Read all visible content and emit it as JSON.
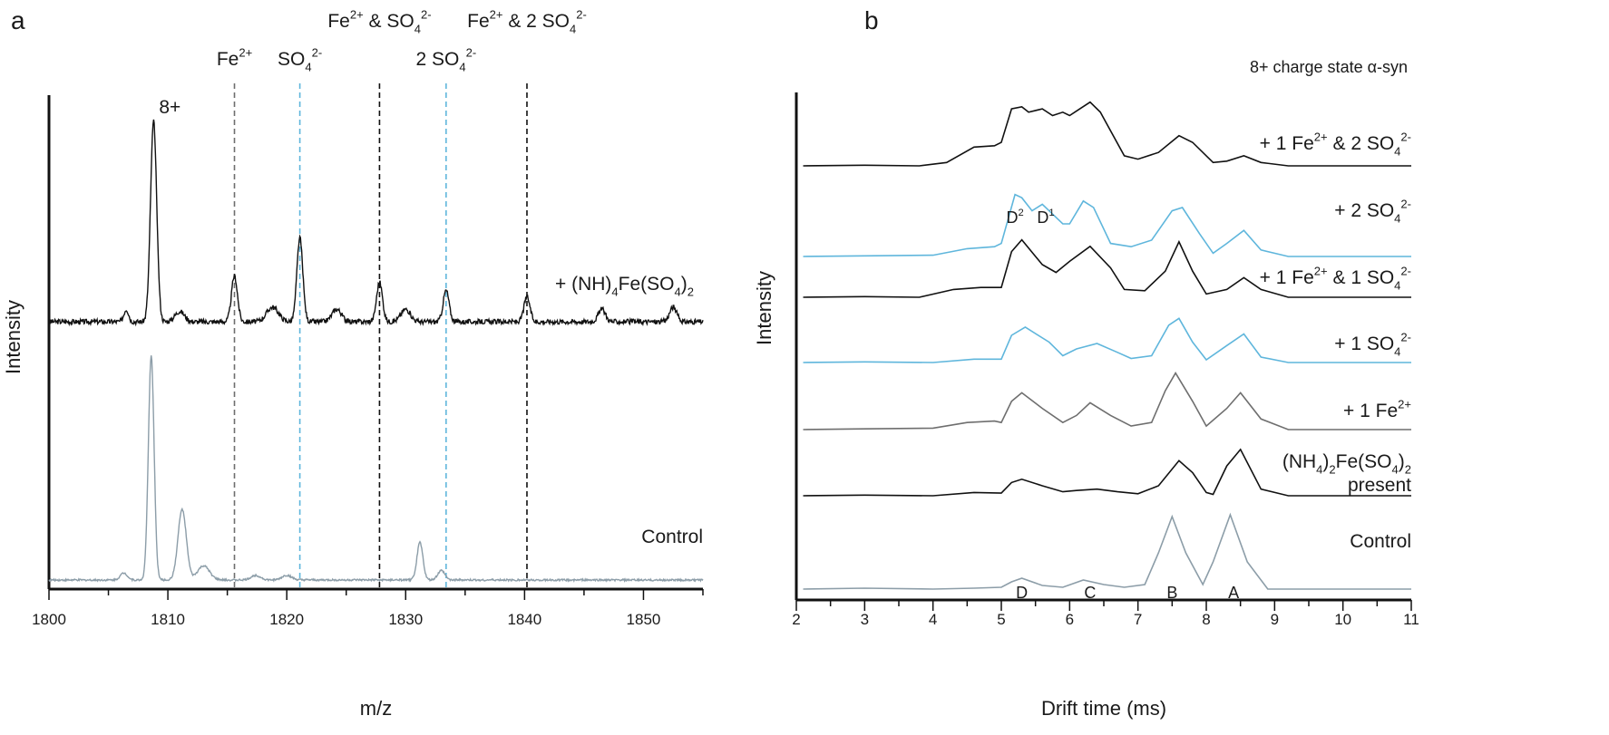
{
  "chart_data": [
    {
      "type": "line",
      "panel": "a",
      "xlabel": "m/z",
      "ylabel": "Intensity",
      "xlim": [
        1800,
        1855
      ],
      "xticks": [
        1800,
        1810,
        1820,
        1830,
        1840,
        1850
      ],
      "xtick_labels": [
        "1800",
        "1810",
        "1820",
        "1830",
        "1840",
        "1850"
      ],
      "peak_label": {
        "text": "8+",
        "x": 1808.8
      },
      "markers": [
        {
          "x": 1815.6,
          "color": "#6e6e6e",
          "base": "Fe",
          "sup": "2+",
          "sub": "",
          "sup2": ""
        },
        {
          "x": 1821.1,
          "color": "#5fb6dc",
          "base": "SO",
          "sub": "4",
          "sup": "2-",
          "sup2": ""
        },
        {
          "x": 1827.8,
          "color": "#111111",
          "base": "Fe",
          "sup": "2+",
          "mid": " & SO",
          "sub": "4",
          "sup2": "2-"
        },
        {
          "x": 1833.4,
          "color": "#5fb6dc",
          "base": "2 SO",
          "sub": "4",
          "sup": "2-",
          "sup2": ""
        },
        {
          "x": 1840.2,
          "color": "#111111",
          "base": "Fe",
          "sup": "2+",
          "mid": " & 2 SO",
          "sub": "4",
          "sup2": "2-"
        }
      ],
      "series": [
        {
          "name": "+ (NH)4Fe(SO4)2",
          "label": {
            "t1": "+ (NH)",
            "s1": "4",
            "t2": "Fe(SO",
            "s2": "4",
            "t3": ")",
            "s3": "2"
          },
          "color": "#111111",
          "baseline": 0.04,
          "noise": 0.012,
          "peaks": [
            {
              "x": 1806.5,
              "h": 0.06,
              "w": 0.2
            },
            {
              "x": 1808.8,
              "h": 0.96,
              "w": 0.26
            },
            {
              "x": 1811.0,
              "h": 0.05,
              "w": 0.4
            },
            {
              "x": 1815.6,
              "h": 0.22,
              "w": 0.25
            },
            {
              "x": 1818.8,
              "h": 0.07,
              "w": 0.5
            },
            {
              "x": 1821.1,
              "h": 0.4,
              "w": 0.25
            },
            {
              "x": 1824.2,
              "h": 0.06,
              "w": 0.4
            },
            {
              "x": 1827.8,
              "h": 0.19,
              "w": 0.25
            },
            {
              "x": 1830.0,
              "h": 0.06,
              "w": 0.4
            },
            {
              "x": 1833.4,
              "h": 0.15,
              "w": 0.25
            },
            {
              "x": 1840.2,
              "h": 0.12,
              "w": 0.25
            },
            {
              "x": 1846.5,
              "h": 0.06,
              "w": 0.3
            },
            {
              "x": 1852.5,
              "h": 0.07,
              "w": 0.3
            }
          ]
        },
        {
          "name": "Control",
          "label": {
            "t1": "Control"
          },
          "color": "#8c9da8",
          "baseline": 0.02,
          "noise": 0.004,
          "peaks": [
            {
              "x": 1806.3,
              "h": 0.03,
              "w": 0.3
            },
            {
              "x": 1808.6,
              "h": 0.95,
              "w": 0.24
            },
            {
              "x": 1811.2,
              "h": 0.3,
              "w": 0.35
            },
            {
              "x": 1813.0,
              "h": 0.06,
              "w": 0.5
            },
            {
              "x": 1817.4,
              "h": 0.02,
              "w": 0.4
            },
            {
              "x": 1820.0,
              "h": 0.02,
              "w": 0.4
            },
            {
              "x": 1831.2,
              "h": 0.16,
              "w": 0.25
            },
            {
              "x": 1833.0,
              "h": 0.04,
              "w": 0.3
            }
          ]
        }
      ]
    },
    {
      "type": "line",
      "panel": "b",
      "title": "8+ charge state α-syn",
      "xlabel": "Drift time (ms)",
      "ylabel": "Intensity",
      "xlim": [
        2,
        11
      ],
      "xticks": [
        2,
        3,
        4,
        5,
        6,
        7,
        8,
        9,
        10,
        11
      ],
      "xtick_labels": [
        "2",
        "3",
        "4",
        "5",
        "6",
        "7",
        "8",
        "9",
        "10",
        "11"
      ],
      "conformer_labels": [
        {
          "text": "D",
          "x": 5.3
        },
        {
          "text": "C",
          "x": 6.3
        },
        {
          "text": "B",
          "x": 7.5
        },
        {
          "text": "A",
          "x": 8.4
        }
      ],
      "sub_labels": [
        {
          "text": "D",
          "sup": "2",
          "x": 5.2
        },
        {
          "text": "D",
          "sup": "1",
          "x": 5.65
        }
      ],
      "series": [
        {
          "name": "+ 1 Fe2+ & 2 SO42-",
          "label": {
            "t1": "+ 1 Fe",
            "sup1": "2+",
            "t2": " & 2 SO",
            "sub": "4",
            "sup2": "2-"
          },
          "color": "#111111",
          "points": [
            [
              2.1,
              0.0
            ],
            [
              3.0,
              0.01
            ],
            [
              3.8,
              0.0
            ],
            [
              4.2,
              0.05
            ],
            [
              4.6,
              0.28
            ],
            [
              4.9,
              0.3
            ],
            [
              5.0,
              0.35
            ],
            [
              5.15,
              0.85
            ],
            [
              5.3,
              0.88
            ],
            [
              5.4,
              0.8
            ],
            [
              5.6,
              0.85
            ],
            [
              5.75,
              0.75
            ],
            [
              5.9,
              0.8
            ],
            [
              6.0,
              0.75
            ],
            [
              6.15,
              0.85
            ],
            [
              6.3,
              0.95
            ],
            [
              6.45,
              0.8
            ],
            [
              6.8,
              0.15
            ],
            [
              7.0,
              0.1
            ],
            [
              7.3,
              0.2
            ],
            [
              7.6,
              0.45
            ],
            [
              7.8,
              0.35
            ],
            [
              8.1,
              0.05
            ],
            [
              8.3,
              0.07
            ],
            [
              8.55,
              0.15
            ],
            [
              8.8,
              0.05
            ],
            [
              9.2,
              0.0
            ],
            [
              11.0,
              0.0
            ]
          ]
        },
        {
          "name": "+ 2 SO42-",
          "label": {
            "t1": "+ 2 SO",
            "sub": "4",
            "sup2": "2-"
          },
          "color": "#5fb6dc",
          "points": [
            [
              2.1,
              0.0
            ],
            [
              3.0,
              0.01
            ],
            [
              4.0,
              0.02
            ],
            [
              4.5,
              0.12
            ],
            [
              4.9,
              0.15
            ],
            [
              5.0,
              0.2
            ],
            [
              5.2,
              0.95
            ],
            [
              5.3,
              0.9
            ],
            [
              5.45,
              0.7
            ],
            [
              5.6,
              0.8
            ],
            [
              5.75,
              0.65
            ],
            [
              5.9,
              0.5
            ],
            [
              6.0,
              0.5
            ],
            [
              6.2,
              0.85
            ],
            [
              6.35,
              0.75
            ],
            [
              6.6,
              0.2
            ],
            [
              6.9,
              0.15
            ],
            [
              7.2,
              0.25
            ],
            [
              7.5,
              0.7
            ],
            [
              7.65,
              0.75
            ],
            [
              7.9,
              0.35
            ],
            [
              8.1,
              0.05
            ],
            [
              8.3,
              0.2
            ],
            [
              8.55,
              0.4
            ],
            [
              8.8,
              0.1
            ],
            [
              9.2,
              0.0
            ],
            [
              11.0,
              0.0
            ]
          ]
        },
        {
          "name": "+ 1 Fe2+ & 1 SO42-",
          "label": {
            "t1": "+ 1 Fe",
            "sup1": "2+",
            "t2": " & 1 SO",
            "sub": "4",
            "sup2": "2-"
          },
          "color": "#111111",
          "points": [
            [
              2.1,
              0.0
            ],
            [
              3.0,
              0.01
            ],
            [
              3.8,
              0.0
            ],
            [
              4.3,
              0.12
            ],
            [
              4.7,
              0.15
            ],
            [
              5.0,
              0.15
            ],
            [
              5.15,
              0.7
            ],
            [
              5.3,
              0.88
            ],
            [
              5.6,
              0.5
            ],
            [
              5.8,
              0.38
            ],
            [
              6.0,
              0.55
            ],
            [
              6.3,
              0.78
            ],
            [
              6.6,
              0.45
            ],
            [
              6.8,
              0.12
            ],
            [
              7.1,
              0.1
            ],
            [
              7.4,
              0.4
            ],
            [
              7.6,
              0.85
            ],
            [
              7.8,
              0.4
            ],
            [
              8.0,
              0.05
            ],
            [
              8.3,
              0.12
            ],
            [
              8.55,
              0.3
            ],
            [
              8.8,
              0.12
            ],
            [
              9.2,
              0.0
            ],
            [
              11.0,
              0.0
            ]
          ]
        },
        {
          "name": "+ 1 SO42-",
          "label": {
            "t1": "+ 1 SO",
            "sub": "4",
            "sup2": "2-"
          },
          "color": "#5fb6dc",
          "points": [
            [
              2.1,
              0.0
            ],
            [
              3.0,
              0.01
            ],
            [
              4.0,
              0.0
            ],
            [
              4.6,
              0.05
            ],
            [
              5.0,
              0.05
            ],
            [
              5.15,
              0.4
            ],
            [
              5.35,
              0.52
            ],
            [
              5.7,
              0.3
            ],
            [
              5.9,
              0.1
            ],
            [
              6.1,
              0.2
            ],
            [
              6.4,
              0.28
            ],
            [
              6.7,
              0.15
            ],
            [
              6.9,
              0.06
            ],
            [
              7.2,
              0.1
            ],
            [
              7.45,
              0.55
            ],
            [
              7.6,
              0.65
            ],
            [
              7.8,
              0.3
            ],
            [
              8.0,
              0.04
            ],
            [
              8.3,
              0.25
            ],
            [
              8.55,
              0.42
            ],
            [
              8.8,
              0.08
            ],
            [
              9.2,
              0.0
            ],
            [
              11.0,
              0.0
            ]
          ]
        },
        {
          "name": "+ 1 Fe2+",
          "label": {
            "t1": "+ 1 Fe",
            "sup1": "2+"
          },
          "color": "#6e6e6e",
          "points": [
            [
              2.1,
              0.0
            ],
            [
              3.0,
              0.01
            ],
            [
              4.0,
              0.02
            ],
            [
              4.5,
              0.1
            ],
            [
              4.9,
              0.12
            ],
            [
              5.0,
              0.1
            ],
            [
              5.15,
              0.4
            ],
            [
              5.3,
              0.52
            ],
            [
              5.6,
              0.3
            ],
            [
              5.9,
              0.1
            ],
            [
              6.1,
              0.2
            ],
            [
              6.3,
              0.38
            ],
            [
              6.6,
              0.2
            ],
            [
              6.9,
              0.05
            ],
            [
              7.2,
              0.1
            ],
            [
              7.4,
              0.55
            ],
            [
              7.55,
              0.8
            ],
            [
              7.8,
              0.4
            ],
            [
              8.0,
              0.05
            ],
            [
              8.3,
              0.3
            ],
            [
              8.5,
              0.52
            ],
            [
              8.8,
              0.15
            ],
            [
              9.2,
              0.0
            ],
            [
              11.0,
              0.0
            ]
          ]
        },
        {
          "name": "(NH4)2Fe(SO4)2 present",
          "label": {
            "t1": "(NH",
            "sub1": "4",
            "t2": ")",
            "sub2": "2",
            "t3": "Fe(SO",
            "sub3": "4",
            "t4": ")",
            "sub4": "2",
            "line2": "present"
          },
          "color": "#111111",
          "points": [
            [
              2.1,
              0.0
            ],
            [
              3.0,
              0.01
            ],
            [
              4.0,
              0.0
            ],
            [
              4.6,
              0.05
            ],
            [
              5.0,
              0.04
            ],
            [
              5.15,
              0.2
            ],
            [
              5.3,
              0.25
            ],
            [
              5.6,
              0.15
            ],
            [
              5.9,
              0.06
            ],
            [
              6.1,
              0.08
            ],
            [
              6.4,
              0.1
            ],
            [
              6.7,
              0.06
            ],
            [
              7.0,
              0.03
            ],
            [
              7.3,
              0.15
            ],
            [
              7.6,
              0.53
            ],
            [
              7.8,
              0.35
            ],
            [
              8.0,
              0.05
            ],
            [
              8.1,
              0.02
            ],
            [
              8.3,
              0.45
            ],
            [
              8.5,
              0.7
            ],
            [
              8.8,
              0.1
            ],
            [
              9.2,
              0.0
            ],
            [
              11.0,
              0.0
            ]
          ]
        },
        {
          "name": "Control",
          "label": {
            "t1": "Control"
          },
          "color": "#8c9da8",
          "points": [
            [
              2.1,
              0.0
            ],
            [
              3.0,
              0.01
            ],
            [
              4.0,
              0.0
            ],
            [
              4.6,
              0.01
            ],
            [
              5.0,
              0.02
            ],
            [
              5.15,
              0.08
            ],
            [
              5.3,
              0.12
            ],
            [
              5.6,
              0.04
            ],
            [
              5.9,
              0.02
            ],
            [
              6.2,
              0.1
            ],
            [
              6.5,
              0.05
            ],
            [
              6.8,
              0.02
            ],
            [
              7.1,
              0.05
            ],
            [
              7.3,
              0.4
            ],
            [
              7.5,
              0.8
            ],
            [
              7.7,
              0.4
            ],
            [
              7.95,
              0.05
            ],
            [
              8.1,
              0.3
            ],
            [
              8.35,
              0.82
            ],
            [
              8.6,
              0.3
            ],
            [
              8.9,
              0.0
            ],
            [
              11.0,
              0.0
            ]
          ]
        }
      ]
    }
  ],
  "panel_letters": {
    "a": "a",
    "b": "b"
  }
}
